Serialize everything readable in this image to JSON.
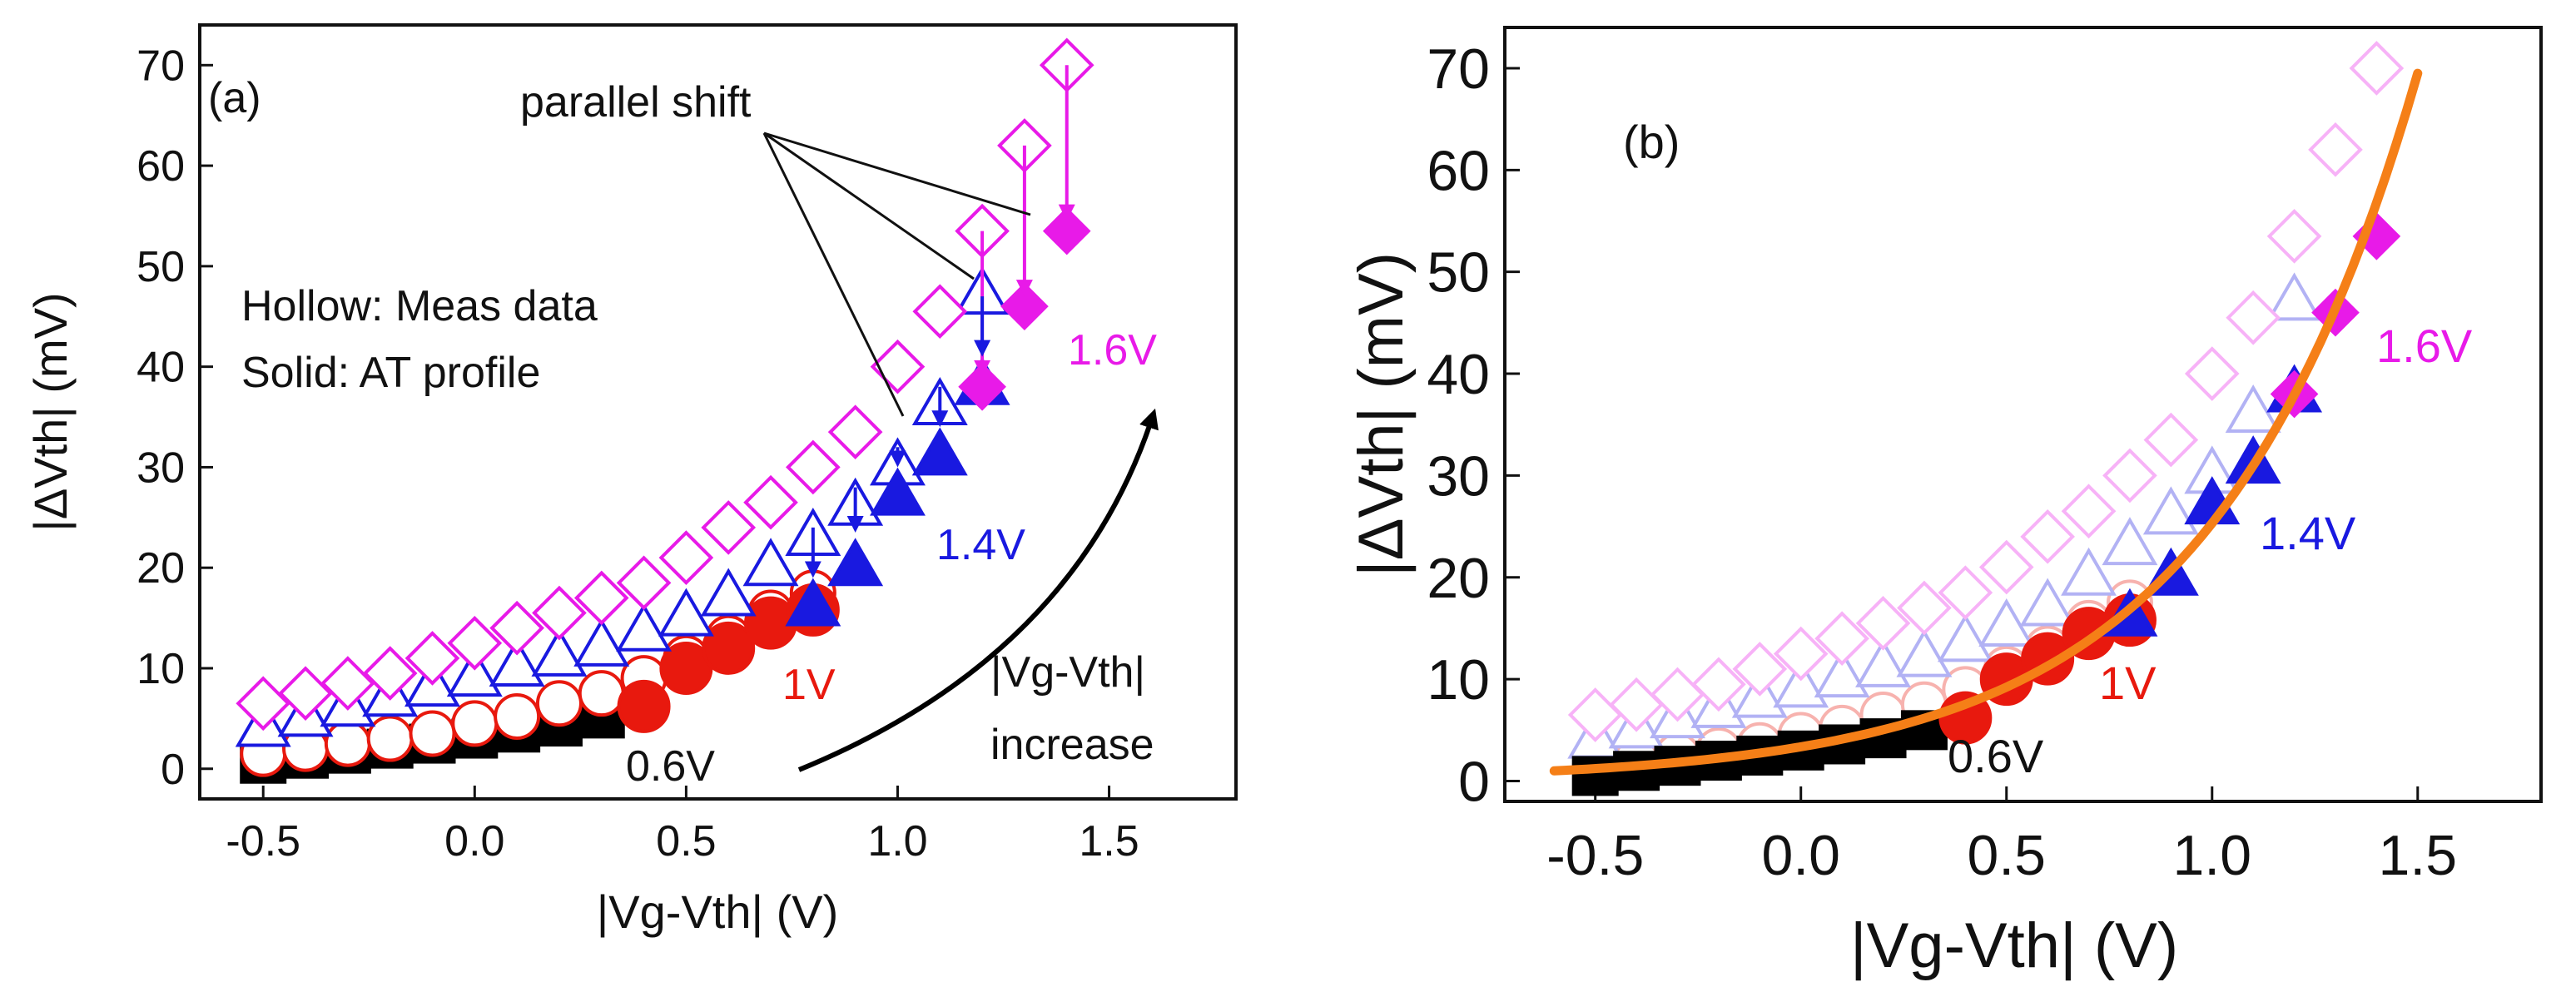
{
  "chart_data": [
    {
      "panel_label": "(a)",
      "type": "scatter",
      "xlabel": "|Vg-Vth| (V)",
      "ylabel": "|ΔVth| (mV)",
      "xlim": [
        -0.65,
        1.8
      ],
      "ylim": [
        -3,
        74
      ],
      "xticks": [
        -0.5,
        0.0,
        0.5,
        1.0,
        1.5
      ],
      "xtick_labels": [
        "-0.5",
        "0.0",
        "0.5",
        "1.0",
        "1.5"
      ],
      "yticks": [
        0,
        10,
        20,
        30,
        40,
        50,
        60,
        70
      ],
      "ytick_labels": [
        "0",
        "10",
        "20",
        "30",
        "40",
        "50",
        "60",
        "70"
      ],
      "legend_text": [
        "Hollow: Meas data",
        "Solid: AT profile"
      ],
      "annotations": {
        "parallel_shift": "parallel shift",
        "increase_line1": "|Vg-Vth|",
        "increase_line2": "increase"
      },
      "series": [
        {
          "name": "0.6V",
          "marker": "square",
          "filled": true,
          "color": "#000000",
          "x": [
            -0.5,
            -0.4,
            -0.3,
            -0.2,
            -0.1,
            0.0,
            0.1,
            0.2,
            0.3
          ],
          "y": [
            0.5,
            1.0,
            1.5,
            2.0,
            2.5,
            3.0,
            3.6,
            4.2,
            5.0
          ]
        },
        {
          "name": "1V meas",
          "marker": "circle",
          "filled": false,
          "color": "#e8190e",
          "x": [
            -0.5,
            -0.4,
            -0.3,
            -0.2,
            -0.1,
            0.0,
            0.1,
            0.2,
            0.3,
            0.4,
            0.5,
            0.6,
            0.7,
            0.8
          ],
          "y": [
            1.5,
            2.0,
            2.5,
            3.0,
            3.5,
            4.5,
            5.2,
            6.5,
            7.5,
            9.0,
            11,
            13,
            15.5,
            17.5
          ]
        },
        {
          "name": "1V",
          "marker": "circle",
          "filled": true,
          "color": "#e8190e",
          "x": [
            0.4,
            0.5,
            0.6,
            0.7,
            0.8
          ],
          "y": [
            6.2,
            10,
            12,
            14.5,
            15.8
          ]
        },
        {
          "name": "1.4V meas",
          "marker": "triangle",
          "filled": false,
          "color": "#1919e0",
          "x": [
            -0.5,
            -0.4,
            -0.3,
            -0.2,
            -0.1,
            0.0,
            0.1,
            0.2,
            0.3,
            0.4,
            0.5,
            0.6,
            0.7,
            0.8,
            0.9,
            1.0,
            1.1,
            1.2
          ],
          "y": [
            4,
            5,
            6,
            7,
            8,
            9,
            10,
            11,
            12,
            13.5,
            15,
            17,
            20,
            23,
            26,
            30,
            36,
            47
          ]
        },
        {
          "name": "1.4V",
          "marker": "triangle",
          "filled": true,
          "color": "#1919e0",
          "x": [
            0.8,
            0.9,
            1.0,
            1.1,
            1.2
          ],
          "y": [
            16,
            20,
            27,
            31,
            38
          ]
        },
        {
          "name": "1.6V meas",
          "marker": "diamond",
          "filled": false,
          "color": "#e81ae8",
          "x": [
            -0.5,
            -0.4,
            -0.3,
            -0.2,
            -0.1,
            0.0,
            0.1,
            0.2,
            0.3,
            0.4,
            0.5,
            0.6,
            0.7,
            0.8,
            0.9,
            1.0,
            1.1,
            1.2,
            1.3,
            1.4
          ],
          "y": [
            6.5,
            7.5,
            8.5,
            9.5,
            11,
            12.5,
            14,
            15.5,
            17,
            18.5,
            21,
            24,
            26.5,
            30,
            33.5,
            40,
            45.5,
            53.5,
            62,
            70
          ]
        },
        {
          "name": "1.6V",
          "marker": "diamond",
          "filled": true,
          "color": "#e81ae8",
          "x": [
            1.2,
            1.3,
            1.4
          ],
          "y": [
            38,
            46,
            53.5
          ]
        }
      ],
      "series_labels": [
        "0.6V",
        "1V",
        "1.4V",
        "1.6V"
      ]
    },
    {
      "panel_label": "(b)",
      "type": "scatter",
      "xlabel": "|Vg-Vth| (V)",
      "ylabel": "|ΔVth| (mV)",
      "xlim": [
        -0.72,
        1.8
      ],
      "ylim": [
        -2,
        74
      ],
      "xticks": [
        -0.5,
        0.0,
        0.5,
        1.0,
        1.5
      ],
      "xtick_labels": [
        "-0.5",
        "0.0",
        "0.5",
        "1.0",
        "1.5"
      ],
      "yticks": [
        0,
        10,
        20,
        30,
        40,
        50,
        60,
        70
      ],
      "ytick_labels": [
        "0",
        "10",
        "20",
        "30",
        "40",
        "50",
        "60",
        "70"
      ],
      "fit_curve": {
        "color": "#f57f17",
        "x_range": [
          -0.6,
          1.5
        ],
        "y_at_start": 1.0,
        "y_at_end": 69.5
      },
      "series_labels": [
        "0.6V",
        "1V",
        "1.4V",
        "1.6V"
      ]
    }
  ]
}
